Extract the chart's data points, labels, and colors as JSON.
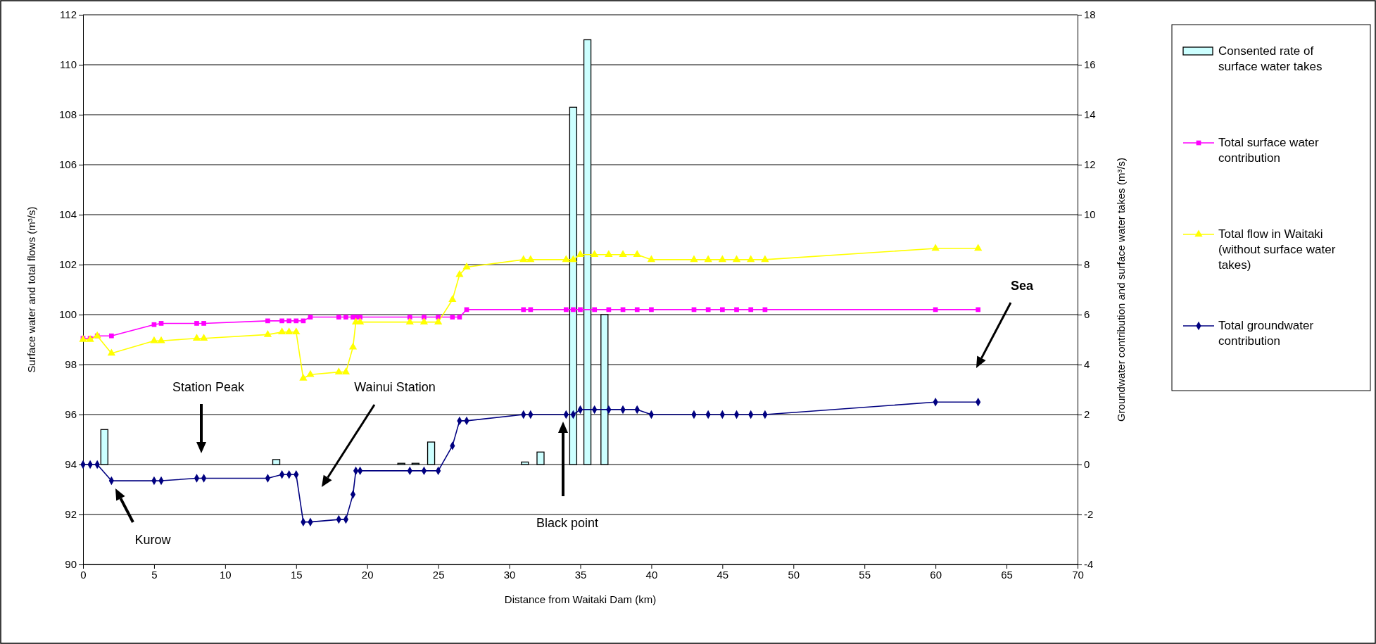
{
  "chart_data": {
    "type": "line",
    "xlabel": "Distance from Waitaki Dam (km)",
    "ylabel": "Surface water and total flows (m³/s)",
    "y2label": "Groundwater contribution and surface water takes (m³/s)",
    "xlim": [
      0,
      70
    ],
    "xticks": [
      0,
      5,
      10,
      15,
      20,
      25,
      30,
      35,
      40,
      45,
      50,
      55,
      60,
      65,
      70
    ],
    "ylim": [
      90,
      112
    ],
    "yticks": [
      90,
      92,
      94,
      96,
      98,
      100,
      102,
      104,
      106,
      108,
      110,
      112
    ],
    "y2lim": [
      -4,
      18
    ],
    "y2ticks": [
      -4,
      -2,
      0,
      2,
      4,
      6,
      8,
      10,
      12,
      14,
      16,
      18
    ],
    "grid": "y",
    "legend": "right",
    "line_style": "solid",
    "series": [
      {
        "name": "Consented rate of surface water takes",
        "type": "bar",
        "axis": "y2",
        "color": "#ccffff",
        "x": [
          1.5,
          13.6,
          22.4,
          23.4,
          24.5,
          31.1,
          32.2,
          34.5,
          35.5,
          36.7
        ],
        "values": [
          1.4,
          0.2,
          0.05,
          0.05,
          0.9,
          0.1,
          0.5,
          14.3,
          17,
          6
        ]
      },
      {
        "name": "Total surface water contribution",
        "marker": "square",
        "color": "#ff00ff",
        "x": [
          0,
          0.5,
          1,
          2,
          5,
          5.5,
          8,
          8.5,
          13,
          14,
          14.5,
          15,
          15.5,
          16,
          18,
          18.5,
          19,
          19.2,
          19.5,
          23,
          24,
          25,
          26,
          26.5,
          27,
          31,
          31.5,
          34,
          34.5,
          35,
          36,
          37,
          38,
          39,
          40,
          43,
          44,
          45,
          46,
          47,
          48,
          60,
          63
        ],
        "values": [
          99.05,
          99.05,
          99.15,
          99.15,
          99.6,
          99.65,
          99.65,
          99.65,
          99.75,
          99.75,
          99.75,
          99.75,
          99.75,
          99.9,
          99.9,
          99.9,
          99.9,
          99.9,
          99.9,
          99.9,
          99.9,
          99.9,
          99.9,
          99.9,
          100.2,
          100.2,
          100.2,
          100.2,
          100.2,
          100.2,
          100.2,
          100.2,
          100.2,
          100.2,
          100.2,
          100.2,
          100.2,
          100.2,
          100.2,
          100.2,
          100.2,
          100.2,
          100.2
        ]
      },
      {
        "name": "Total flow in Waitaki (without surface water takes)",
        "marker": "triangle",
        "color": "#ffff00",
        "x": [
          0,
          0.5,
          1,
          2,
          5,
          5.5,
          8,
          8.5,
          13,
          14,
          14.5,
          15,
          15.5,
          16,
          18,
          18.5,
          19,
          19.2,
          19.5,
          23,
          24,
          25,
          26,
          26.5,
          27,
          31,
          31.5,
          34,
          34.5,
          35,
          36,
          37,
          38,
          39,
          40,
          43,
          44,
          45,
          46,
          47,
          48,
          60,
          63
        ],
        "values": [
          99.0,
          99.0,
          99.15,
          98.45,
          98.95,
          98.95,
          99.05,
          99.05,
          99.2,
          99.3,
          99.3,
          99.3,
          97.45,
          97.6,
          97.7,
          97.7,
          98.7,
          99.7,
          99.7,
          99.7,
          99.7,
          99.7,
          100.6,
          101.6,
          101.9,
          102.2,
          102.2,
          102.2,
          102.2,
          102.4,
          102.4,
          102.4,
          102.4,
          102.4,
          102.2,
          102.2,
          102.2,
          102.2,
          102.2,
          102.2,
          102.2,
          102.65,
          102.65
        ]
      },
      {
        "name": "Total groundwater contribution",
        "marker": "diamond",
        "axis": "y2",
        "color": "#000080",
        "x": [
          0,
          0.5,
          1,
          2,
          5,
          5.5,
          8,
          8.5,
          13,
          14,
          14.5,
          15,
          15.5,
          16,
          18,
          18.5,
          19,
          19.2,
          19.5,
          23,
          24,
          25,
          26,
          26.5,
          27,
          31,
          31.5,
          34,
          34.5,
          35,
          36,
          37,
          38,
          39,
          40,
          43,
          44,
          45,
          46,
          47,
          48,
          60,
          63
        ],
        "values": [
          0,
          0,
          0,
          -0.65,
          -0.65,
          -0.65,
          -0.55,
          -0.55,
          -0.55,
          -0.4,
          -0.4,
          -0.4,
          -2.3,
          -2.3,
          -2.2,
          -2.2,
          -1.2,
          -0.25,
          -0.25,
          -0.25,
          -0.25,
          -0.25,
          0.75,
          1.75,
          1.75,
          2,
          2,
          2,
          2,
          2.2,
          2.2,
          2.2,
          2.2,
          2.2,
          2,
          2,
          2,
          2,
          2,
          2,
          2,
          2.5,
          2.5
        ]
      }
    ],
    "annotations": [
      "Station Peak",
      "Wainui Station",
      "Kurow",
      "Black point",
      "Sea"
    ]
  }
}
